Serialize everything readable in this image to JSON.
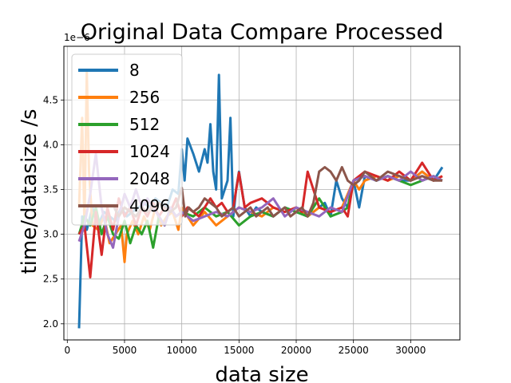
{
  "chart_data": {
    "type": "line",
    "title": "Original Data Compare Processed",
    "xlabel": "data size",
    "ylabel": "time/datasize /s",
    "y_offset_label": "1e−6",
    "xlim": [
      -300,
      34300
    ],
    "ylim": [
      1.82,
      5.1
    ],
    "x_ticks": [
      0,
      5000,
      10000,
      15000,
      20000,
      25000,
      30000
    ],
    "x_tick_labels": [
      "0",
      "5000",
      "10000",
      "15000",
      "20000",
      "25000",
      "30000"
    ],
    "y_ticks": [
      2.0,
      2.5,
      3.0,
      3.5,
      4.0,
      4.5
    ],
    "y_tick_labels": [
      "2.0",
      "2.5",
      "3.0",
      "3.5",
      "4.0",
      "4.5"
    ],
    "grid": true,
    "legend_position": "top-left",
    "series": [
      {
        "name": "8",
        "color": "#1f77b4",
        "x": [
          1024,
          1300,
          1700,
          2200,
          2700,
          3200,
          3700,
          4200,
          4700,
          5200,
          5700,
          6200,
          6700,
          7200,
          7700,
          8200,
          8700,
          9200,
          9700,
          10000,
          10250,
          10500,
          11000,
          11500,
          12000,
          12250,
          12500,
          12750,
          13000,
          13250,
          13500,
          13750,
          14000,
          14250,
          14500,
          14750,
          15000,
          15500,
          16000,
          16500,
          17000,
          18000,
          19000,
          20000,
          21000,
          22000,
          22500,
          23000,
          23500,
          24000,
          24500,
          25000,
          25500,
          26000,
          27000,
          28000,
          29000,
          30000,
          31000,
          32000,
          32768
        ],
        "y": [
          1.95,
          3.2,
          3.05,
          3.3,
          3.1,
          3.25,
          3.2,
          3.15,
          3.3,
          3.2,
          3.25,
          3.3,
          3.35,
          3.3,
          3.4,
          3.35,
          3.3,
          3.5,
          3.45,
          3.95,
          3.6,
          4.07,
          3.9,
          3.7,
          3.95,
          3.8,
          4.23,
          3.7,
          3.5,
          4.78,
          3.4,
          3.5,
          3.6,
          4.3,
          3.2,
          3.5,
          3.7,
          3.3,
          3.2,
          3.3,
          3.25,
          3.2,
          3.3,
          3.25,
          3.2,
          3.3,
          3.35,
          3.2,
          3.6,
          3.4,
          3.3,
          3.6,
          3.3,
          3.65,
          3.6,
          3.65,
          3.6,
          3.6,
          3.7,
          3.6,
          3.75
        ]
      },
      {
        "name": "256",
        "color": "#ff7f0e",
        "x": [
          1024,
          1300,
          1500,
          1700,
          1900,
          2200,
          2700,
          3200,
          3700,
          4200,
          4700,
          5000,
          5200,
          5700,
          6200,
          6700,
          7200,
          7700,
          8200,
          8700,
          9200,
          9700,
          10000,
          11000,
          12000,
          13000,
          14000,
          15000,
          16000,
          17000,
          18000,
          19000,
          20000,
          21000,
          22000,
          23000,
          24000,
          25000,
          25500,
          26000,
          27000,
          28000,
          29000,
          30000,
          31000,
          32000,
          32768
        ],
        "y": [
          3.3,
          4.3,
          3.1,
          4.82,
          3.7,
          3.1,
          3.05,
          3.2,
          2.9,
          3.0,
          3.1,
          2.69,
          3.0,
          3.15,
          3.0,
          3.2,
          3.05,
          3.3,
          3.1,
          3.2,
          3.25,
          3.05,
          3.3,
          3.1,
          3.25,
          3.1,
          3.2,
          3.3,
          3.25,
          3.2,
          3.3,
          3.25,
          3.3,
          3.2,
          3.3,
          3.25,
          3.3,
          3.6,
          3.5,
          3.6,
          3.65,
          3.6,
          3.65,
          3.6,
          3.7,
          3.6,
          3.65
        ]
      },
      {
        "name": "512",
        "color": "#2ca02c",
        "x": [
          1024,
          1500,
          2000,
          2500,
          3000,
          3500,
          4000,
          4500,
          5000,
          5500,
          6000,
          6500,
          7000,
          7500,
          8000,
          8500,
          9000,
          9500,
          10000,
          11000,
          12000,
          13000,
          14000,
          15000,
          15500,
          16000,
          17000,
          18000,
          19000,
          20000,
          21000,
          22000,
          23000,
          24000,
          24500,
          25000,
          26000,
          27000,
          28000,
          29000,
          30000,
          31000,
          32000,
          32768
        ],
        "y": [
          3.0,
          3.2,
          3.1,
          3.3,
          3.0,
          3.2,
          3.0,
          2.95,
          3.15,
          2.9,
          3.1,
          3.0,
          3.15,
          2.85,
          3.2,
          3.1,
          3.3,
          3.2,
          3.25,
          3.2,
          3.3,
          3.2,
          3.25,
          3.1,
          3.15,
          3.2,
          3.25,
          3.2,
          3.3,
          3.25,
          3.2,
          3.4,
          3.2,
          3.25,
          3.3,
          3.6,
          3.65,
          3.6,
          3.65,
          3.6,
          3.55,
          3.6,
          3.65,
          3.6
        ]
      },
      {
        "name": "1024",
        "color": "#d62728",
        "x": [
          1024,
          1500,
          2000,
          2500,
          3000,
          3500,
          4000,
          4500,
          5000,
          5500,
          6000,
          6500,
          7000,
          7500,
          8000,
          8500,
          9000,
          9500,
          10000,
          10500,
          11000,
          11500,
          12000,
          12500,
          13000,
          13500,
          14000,
          14500,
          15000,
          15500,
          16000,
          17000,
          18000,
          19000,
          20000,
          20500,
          21000,
          22000,
          23000,
          24000,
          24500,
          25000,
          26000,
          27000,
          28000,
          29000,
          30000,
          31000,
          32000,
          32768
        ],
        "y": [
          3.0,
          3.1,
          2.52,
          3.25,
          2.77,
          3.3,
          3.05,
          3.4,
          3.2,
          3.3,
          3.1,
          3.3,
          3.2,
          3.35,
          3.2,
          3.3,
          3.25,
          3.4,
          3.2,
          3.3,
          3.25,
          3.2,
          3.3,
          3.4,
          3.3,
          3.35,
          3.25,
          3.3,
          3.69,
          3.3,
          3.35,
          3.4,
          3.3,
          3.25,
          3.3,
          3.25,
          3.7,
          3.3,
          3.25,
          3.3,
          3.2,
          3.6,
          3.7,
          3.65,
          3.6,
          3.7,
          3.6,
          3.8,
          3.6,
          3.65
        ]
      },
      {
        "name": "2048",
        "color": "#9467bd",
        "x": [
          1024,
          1500,
          2000,
          2500,
          3000,
          3500,
          4000,
          4500,
          5000,
          5500,
          6000,
          6500,
          7000,
          7500,
          8000,
          8500,
          9000,
          9500,
          10000,
          11000,
          12000,
          13000,
          14000,
          15000,
          16000,
          17000,
          18000,
          19000,
          20000,
          21000,
          22000,
          23000,
          24000,
          25000,
          26000,
          27000,
          28000,
          29000,
          30000,
          31000,
          32000,
          32768
        ],
        "y": [
          2.92,
          3.1,
          3.45,
          3.9,
          3.3,
          3.0,
          2.85,
          3.2,
          3.45,
          3.3,
          3.5,
          3.3,
          3.4,
          3.3,
          3.2,
          3.1,
          3.3,
          3.2,
          3.25,
          3.15,
          3.2,
          3.25,
          3.2,
          3.3,
          3.25,
          3.3,
          3.4,
          3.2,
          3.3,
          3.25,
          3.2,
          3.3,
          3.25,
          3.6,
          3.65,
          3.6,
          3.65,
          3.6,
          3.7,
          3.6,
          3.65,
          3.6
        ]
      },
      {
        "name": "4096",
        "color": "#8c564b",
        "x": [
          4096,
          4500,
          5000,
          5500,
          6000,
          6500,
          7000,
          7500,
          8000,
          8500,
          9000,
          9500,
          10000,
          10300,
          10600,
          11000,
          11500,
          12000,
          12500,
          13000,
          13500,
          14000,
          14500,
          15000,
          15500,
          16000,
          16500,
          17000,
          17500,
          18000,
          18500,
          19000,
          19500,
          20000,
          20500,
          21000,
          21500,
          22000,
          22500,
          23000,
          23500,
          24000,
          24500,
          25000,
          25500,
          26000,
          26500,
          27000,
          28000,
          29000,
          30000,
          31000,
          32000,
          32768
        ],
        "y": [
          3.3,
          3.2,
          3.3,
          3.25,
          3.2,
          3.3,
          3.25,
          3.3,
          3.35,
          3.3,
          3.25,
          3.3,
          3.52,
          3.2,
          3.3,
          3.25,
          3.3,
          3.4,
          3.35,
          3.3,
          3.2,
          3.25,
          3.3,
          3.2,
          3.25,
          3.3,
          3.2,
          3.25,
          3.3,
          3.2,
          3.25,
          3.3,
          3.2,
          3.25,
          3.3,
          3.2,
          3.35,
          3.7,
          3.75,
          3.7,
          3.6,
          3.75,
          3.6,
          3.55,
          3.6,
          3.7,
          3.65,
          3.6,
          3.7,
          3.65,
          3.6,
          3.65,
          3.6,
          3.6
        ]
      }
    ]
  }
}
